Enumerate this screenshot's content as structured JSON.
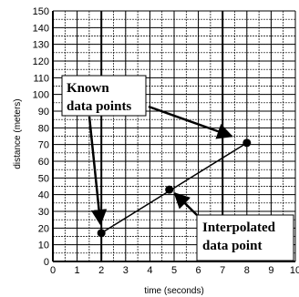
{
  "chart_data": {
    "type": "scatter",
    "xlabel": "time (seconds)",
    "ylabel": "distance (meters)",
    "xlim": [
      0,
      10
    ],
    "ylim": [
      0,
      150
    ],
    "xticks": [
      0,
      1,
      2,
      3,
      4,
      5,
      6,
      7,
      8,
      9,
      10
    ],
    "yticks": [
      0,
      10,
      20,
      30,
      40,
      50,
      60,
      70,
      80,
      90,
      100,
      110,
      120,
      130,
      140,
      150
    ],
    "grid": true,
    "minor_grid": {
      "x_step": 0.5,
      "y_step": 5
    },
    "guide_lines": [
      {
        "x": 2
      },
      {
        "x": 7
      }
    ],
    "line": {
      "from": [
        2,
        17
      ],
      "to": [
        8,
        71
      ]
    },
    "points": [
      {
        "x": 2,
        "y": 17
      },
      {
        "x": 8,
        "y": 71
      },
      {
        "x": 4.8,
        "y": 43
      }
    ],
    "annotations": [
      {
        "text": [
          "Known",
          "data points"
        ]
      },
      {
        "text": [
          "Interpolated",
          "data point"
        ]
      }
    ]
  }
}
